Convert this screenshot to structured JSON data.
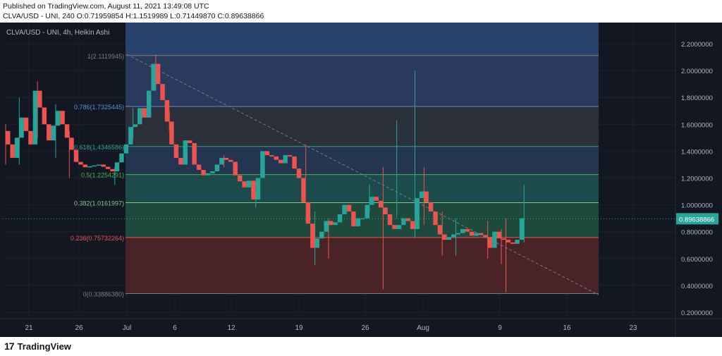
{
  "header": {
    "published": "Published on TradingView.com, August 11, 2021 13:49:08 UTC",
    "ohlc": "CLVA/USD - UNI, 240 O:0.71959854 H:1.1519989 L:0.71449870 C:0.89638866"
  },
  "symbol_legend": "CLVA/USD - UNI, 4h, Heikin Ashi",
  "branding": {
    "logo": "17",
    "name": "TradingView"
  },
  "colors": {
    "background": "#131722",
    "up": "#26a69a",
    "down": "#ef5350",
    "grid": "#1e222d",
    "axis_text": "#b2b5be"
  },
  "chart_data": {
    "type": "candlestick",
    "chart_style": "Heikin Ashi",
    "symbol": "CLVA/USD",
    "exchange": "UNI",
    "interval": "4h",
    "ylim": [
      0.2,
      2.35
    ],
    "y_ticks": [
      "2.2000000",
      "2.0000000",
      "1.8000000",
      "1.6000000",
      "1.4000000",
      "1.2000000",
      "1.0000000",
      "0.8000000",
      "0.6000000",
      "0.4000000",
      "0.2000000"
    ],
    "x_ticks": [
      "21",
      "26",
      "Jul",
      "6",
      "12",
      "19",
      "26",
      "Aug",
      "9",
      "16",
      "23"
    ],
    "last_price": "0.89638866",
    "fibonacci": [
      {
        "label": "1(2.1119945)",
        "level": 2.1119945
      },
      {
        "label": "0.786(1.7325445)",
        "level": 1.7325445
      },
      {
        "label": "0.618(1.4346586)",
        "level": 1.4346586
      },
      {
        "label": "0.5(1.2254291)",
        "level": 1.2254291
      },
      {
        "label": "0.382(1.0161997)",
        "level": 1.0161997
      },
      {
        "label": "0.236(0.75732264)",
        "level": 0.75732264
      },
      {
        "label": "0(0.33886380)",
        "level": 0.3388638
      }
    ],
    "trendline": [
      [
        2.12,
        0.33
      ]
    ],
    "series_path": [
      [
        0,
        1.55
      ],
      [
        2,
        1.35
      ],
      [
        4,
        1.65
      ],
      [
        6,
        1.45
      ],
      [
        7,
        1.85
      ],
      [
        9,
        1.6
      ],
      [
        10,
        1.48
      ],
      [
        12,
        1.7
      ],
      [
        14,
        1.5
      ],
      [
        16,
        1.32
      ],
      [
        18,
        1.28
      ],
      [
        21,
        1.3
      ],
      [
        24,
        1.25
      ],
      [
        27,
        1.45
      ],
      [
        28,
        1.58
      ],
      [
        29,
        1.6
      ],
      [
        30,
        1.72
      ],
      [
        31,
        1.65
      ],
      [
        32,
        1.85
      ],
      [
        33,
        2.05
      ],
      [
        34,
        1.9
      ],
      [
        35,
        1.78
      ],
      [
        36,
        1.62
      ],
      [
        37,
        1.45
      ],
      [
        38,
        1.35
      ],
      [
        39,
        1.3
      ],
      [
        40,
        1.48
      ],
      [
        41,
        1.46
      ],
      [
        42,
        1.3
      ],
      [
        44,
        1.22
      ],
      [
        46,
        1.25
      ],
      [
        48,
        1.35
      ],
      [
        50,
        1.32
      ],
      [
        51,
        1.22
      ],
      [
        53,
        1.13
      ],
      [
        54,
        1.18
      ],
      [
        55,
        1.04
      ],
      [
        56,
        1.2
      ],
      [
        57,
        1.4
      ],
      [
        58,
        1.37
      ],
      [
        59,
        1.36
      ],
      [
        61,
        1.31
      ],
      [
        62,
        1.37
      ],
      [
        63,
        1.36
      ],
      [
        64,
        1.27
      ],
      [
        65,
        1.2
      ],
      [
        66,
        1.02
      ],
      [
        67,
        0.86
      ],
      [
        68,
        0.68
      ],
      [
        69,
        0.75
      ],
      [
        70,
        0.8
      ],
      [
        71,
        0.88
      ],
      [
        72,
        0.85
      ],
      [
        73,
        0.87
      ],
      [
        74,
        0.93
      ],
      [
        75,
        1.0
      ],
      [
        76,
        0.95
      ],
      [
        77,
        0.84
      ],
      [
        78,
        0.9
      ],
      [
        79,
        0.9
      ],
      [
        80,
        1.0
      ],
      [
        81,
        1.06
      ],
      [
        82,
        1.03
      ],
      [
        83,
        0.98
      ],
      [
        84,
        0.93
      ],
      [
        85,
        0.85
      ],
      [
        86,
        0.82
      ],
      [
        87,
        0.85
      ],
      [
        88,
        0.9
      ],
      [
        89,
        0.88
      ],
      [
        90,
        0.82
      ],
      [
        91,
        1.05
      ],
      [
        92,
        1.1
      ],
      [
        93,
        1.02
      ],
      [
        94,
        0.95
      ],
      [
        95,
        0.85
      ],
      [
        96,
        0.78
      ],
      [
        97,
        0.74
      ],
      [
        98,
        0.76
      ],
      [
        99,
        0.78
      ],
      [
        100,
        0.79
      ],
      [
        101,
        0.82
      ],
      [
        102,
        0.8
      ],
      [
        103,
        0.77
      ],
      [
        104,
        0.79
      ],
      [
        106,
        0.76
      ],
      [
        107,
        0.68
      ],
      [
        108,
        0.8
      ],
      [
        109,
        0.75
      ],
      [
        110,
        0.74
      ],
      [
        111,
        0.72
      ],
      [
        112,
        0.71
      ],
      [
        113,
        0.74
      ],
      [
        114,
        0.9
      ]
    ],
    "wicks": [
      {
        "t": 0,
        "hi": 1.6,
        "lo": 1.3
      },
      {
        "t": 3,
        "hi": 1.8,
        "lo": 1.3
      },
      {
        "t": 7,
        "hi": 1.92,
        "lo": 1.5
      },
      {
        "t": 11,
        "hi": 1.75,
        "lo": 1.35
      },
      {
        "t": 14,
        "hi": 1.55,
        "lo": 1.2
      },
      {
        "t": 24,
        "hi": 1.28,
        "lo": 1.15
      },
      {
        "t": 28,
        "hi": 1.72,
        "lo": 1.5
      },
      {
        "t": 33,
        "hi": 2.12,
        "lo": 1.85
      },
      {
        "t": 36,
        "hi": 1.7,
        "lo": 1.55
      },
      {
        "t": 48,
        "hi": 1.37,
        "lo": 1.28
      },
      {
        "t": 55,
        "hi": 1.1,
        "lo": 0.98
      },
      {
        "t": 66,
        "hi": 1.45,
        "lo": 1.2
      },
      {
        "t": 68,
        "hi": 0.95,
        "lo": 0.55
      },
      {
        "t": 71,
        "hi": 0.9,
        "lo": 0.6
      },
      {
        "t": 80,
        "hi": 1.15,
        "lo": 0.95
      },
      {
        "t": 83,
        "hi": 1.28,
        "lo": 0.37
      },
      {
        "t": 86,
        "hi": 1.63,
        "lo": 0.9
      },
      {
        "t": 90,
        "hi": 2.0,
        "lo": 0.75
      },
      {
        "t": 92,
        "hi": 1.28,
        "lo": 0.85
      },
      {
        "t": 96,
        "hi": 0.95,
        "lo": 0.62
      },
      {
        "t": 99,
        "hi": 0.9,
        "lo": 0.62
      },
      {
        "t": 106,
        "hi": 0.88,
        "lo": 0.6
      },
      {
        "t": 109,
        "hi": 0.82,
        "lo": 0.56
      },
      {
        "t": 110,
        "hi": 0.9,
        "lo": 0.35
      },
      {
        "t": 114,
        "hi": 1.15,
        "lo": 0.72
      }
    ]
  }
}
